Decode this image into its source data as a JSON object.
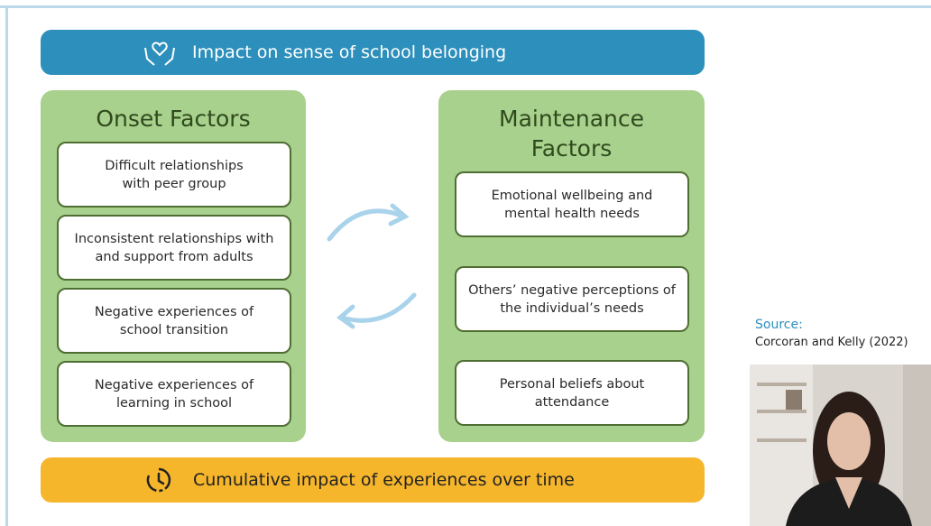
{
  "header": {
    "title": "Impact on sense of school belonging"
  },
  "onset_factors": {
    "title": "Onset Factors",
    "items": [
      "Difficult relationships with peer group",
      "Inconsistent relationships with and support from adults",
      "Negative experiences of school transition",
      "Negative experiences of learning in school"
    ]
  },
  "maintenance_factors": {
    "title": "Maintenance Factors",
    "items": [
      "Emotional wellbeing and mental health needs",
      "Others’ negative perceptions of the individual’s needs",
      "Personal beliefs about attendance"
    ]
  },
  "footer": {
    "title": "Cumulative impact of experiences over time"
  },
  "source": {
    "label": "Source:",
    "citation": "Corcoran and Kelly (2022)"
  }
}
